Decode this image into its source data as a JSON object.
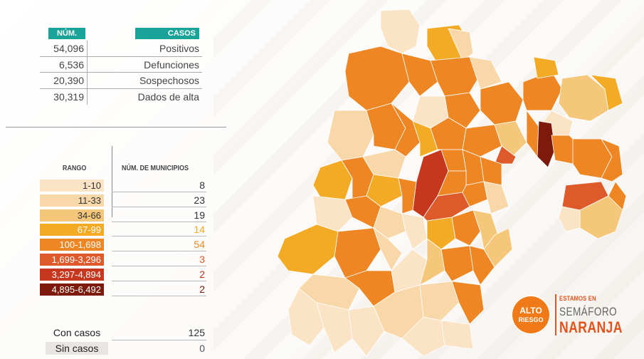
{
  "stats": {
    "num_header": "NÚM.",
    "casos_header": "CASOS",
    "rows": [
      {
        "value": "54,096",
        "label": "Positivos"
      },
      {
        "value": "6,536",
        "label": "Defunciones"
      },
      {
        "value": "20,390",
        "label": "Sospechosos"
      },
      {
        "value": "30,319",
        "label": "Dados de alta"
      }
    ]
  },
  "legend": {
    "header_range": "RANGO",
    "header_count": "NÚM. DE MUNICIPIOS",
    "ranges": [
      {
        "label": "1-10",
        "count": "8",
        "color": "#fbe3c5",
        "text_color": "#333333",
        "count_color": "#333333"
      },
      {
        "label": "11-33",
        "count": "23",
        "color": "#f8d7a8",
        "text_color": "#333333",
        "count_color": "#333333"
      },
      {
        "label": "34-66",
        "count": "19",
        "color": "#f5c77a",
        "text_color": "#333333",
        "count_color": "#333333"
      },
      {
        "label": "67-99",
        "count": "14",
        "color": "#f3aa24",
        "text_color": "#ffffff",
        "count_color": "#f3aa24"
      },
      {
        "label": "100-1,698",
        "count": "54",
        "color": "#ee8623",
        "text_color": "#ffffff",
        "count_color": "#ee8623"
      },
      {
        "label": "1,699-3,296",
        "count": "3",
        "color": "#df5a2b",
        "text_color": "#ffffff",
        "count_color": "#df5a2b"
      },
      {
        "label": "3,297-4,894",
        "count": "2",
        "color": "#c7371e",
        "text_color": "#ffffff",
        "count_color": "#c7371e"
      },
      {
        "label": "4,895-6,492",
        "count": "2",
        "color": "#7e1a0c",
        "text_color": "#ffffff",
        "count_color": "#7e1a0c"
      }
    ]
  },
  "summary": [
    {
      "label": "Con casos",
      "value": "125",
      "value_color": "#333333"
    },
    {
      "label": "Sin casos",
      "value": "0",
      "value_color": "#555555"
    }
  ],
  "badge": {
    "circle_line1": "ALTO",
    "circle_line2": "RIESGO",
    "line1": "ESTAMOS EN",
    "line2": "SEMÁFORO",
    "line3": "NARANJA"
  },
  "colors": {
    "teal_header": "#1aa398",
    "accent_orange": "#e3531b"
  }
}
